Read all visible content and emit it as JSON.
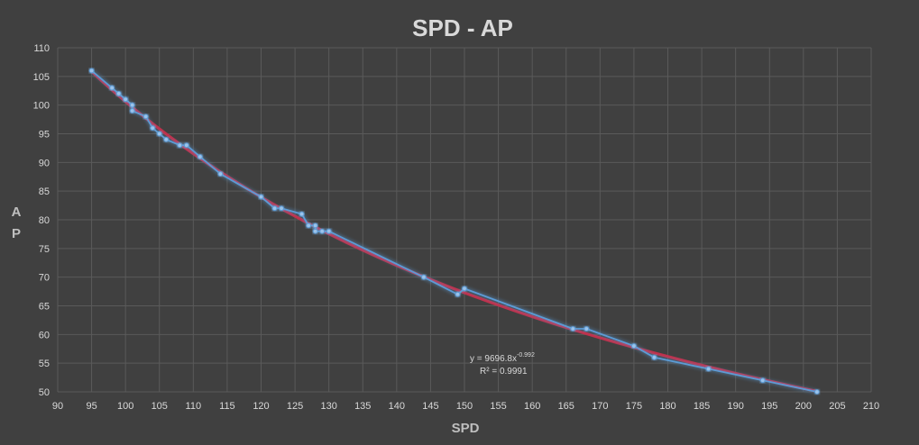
{
  "chart_data": {
    "type": "scatter",
    "title": "SPD - AP",
    "xlabel": "SPD",
    "ylabel_lines": [
      "A",
      "P"
    ],
    "xlim": [
      90,
      210
    ],
    "xticks": [
      90,
      95,
      100,
      105,
      110,
      115,
      120,
      125,
      130,
      135,
      140,
      145,
      150,
      155,
      160,
      165,
      170,
      175,
      180,
      185,
      190,
      195,
      200,
      205,
      210
    ],
    "ylim": [
      50,
      110
    ],
    "yticks": [
      50,
      55,
      60,
      65,
      70,
      75,
      80,
      85,
      90,
      95,
      100,
      105,
      110
    ],
    "grid": true,
    "legend": "none",
    "series": [
      {
        "style": "markers-with-connecting-line",
        "color": "#5b9bd5",
        "x": [
          95,
          98,
          99,
          100,
          101,
          101,
          103,
          104,
          105,
          106,
          108,
          109,
          111,
          114,
          120,
          122,
          123,
          126,
          127,
          128,
          128,
          129,
          130,
          144,
          149,
          150,
          166,
          168,
          175,
          178,
          186,
          194,
          202
        ],
        "y": [
          106,
          103,
          102,
          101,
          100,
          99,
          98,
          96,
          95,
          94,
          93,
          93,
          91,
          88,
          84,
          82,
          82,
          81,
          79,
          79,
          78,
          78,
          78,
          70,
          67,
          68,
          61,
          61,
          58,
          56,
          54,
          52,
          50
        ]
      }
    ],
    "trendline": {
      "kind": "power",
      "color": "#c0304a",
      "coefficient": 9696.8,
      "exponent": -0.992,
      "x_range": [
        95,
        202
      ],
      "equation_prefix": "y = 9696.8x",
      "equation_exponent": "-0.992",
      "r_squared_text": "R² = 0.9991"
    }
  }
}
